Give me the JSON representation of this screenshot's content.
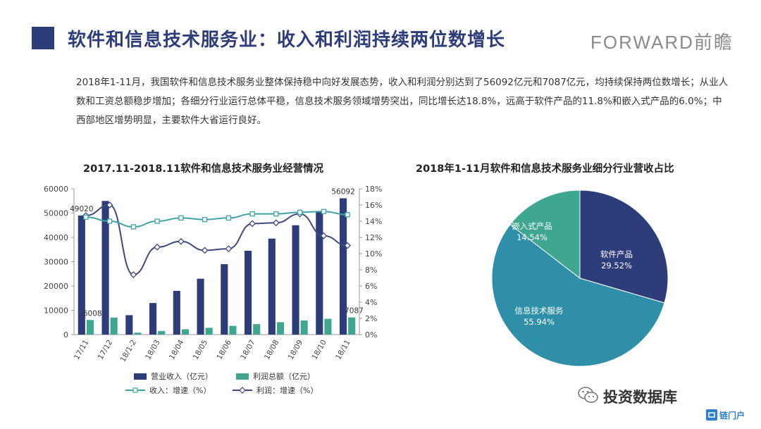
{
  "header": {
    "title": "软件和信息技术服务业：收入和利润持续两位数增长",
    "logo_text": "FORWARD前瞻"
  },
  "summary": {
    "text": "2018年1-11月，我国软件和信息技术服务业整体保持稳中向好发展态势，收入和利润分别达到了56092亿元和7087亿元，均持续保持两位数增长；从业人数和工资总额稳步增加；各细分行业运行总体平稳，信息技术服务领域增势突出，同比增长达18.8%，远高于软件产品的11.8%和嵌入式产品的6.0%；中西部地区增势明显，主要软件大省运行良好。"
  },
  "footer": {
    "brand": "投资数据库",
    "badge": "链门户"
  },
  "colors": {
    "title": "#2d3d7a",
    "bar_revenue": "#2d3d7a",
    "bar_profit": "#3fa68f",
    "line_revenue": "#3fa3a6",
    "line_profit": "#3d4a7d",
    "pie_software": "#2d3d7a",
    "pie_it": "#2f8fa8",
    "pie_embedded": "#3fa68f"
  },
  "chart_data": [
    {
      "type": "bar",
      "title": "2017.11-2018.11软件和信息技术服务业经营情况",
      "categories": [
        "17/11",
        "17/12",
        "18/1-2",
        "18/03",
        "18/04",
        "18/05",
        "18/06",
        "18/07",
        "18/08",
        "18/09",
        "18/10",
        "18/11"
      ],
      "series": [
        {
          "name": "营业收入（亿元）",
          "type": "bar",
          "axis": "left",
          "values": [
            49020,
            55000,
            8000,
            13000,
            18000,
            23000,
            29000,
            34500,
            39500,
            45000,
            50500,
            56092
          ]
        },
        {
          "name": "利润总额（亿元）",
          "type": "bar",
          "axis": "left",
          "values": [
            6008,
            7000,
            800,
            1500,
            2200,
            2800,
            3600,
            4300,
            5100,
            5800,
            6500,
            7087
          ]
        },
        {
          "name": "收入：增速（%）",
          "type": "line",
          "axis": "right",
          "values": [
            14.5,
            14.0,
            13.3,
            14.0,
            14.4,
            14.2,
            14.4,
            14.9,
            14.9,
            15.1,
            15.2,
            14.8
          ]
        },
        {
          "name": "利润：增速（%）",
          "type": "line",
          "axis": "right",
          "values": [
            14.7,
            16.0,
            7.4,
            10.8,
            11.5,
            10.4,
            10.6,
            13.7,
            13.8,
            14.9,
            12.2,
            11.0
          ]
        }
      ],
      "data_labels": [
        {
          "text": "49020"
        },
        {
          "text": "6008"
        },
        {
          "text": "56092"
        },
        {
          "text": "7087"
        }
      ],
      "ylim_left": [
        0,
        60000
      ],
      "ylim_right": [
        0,
        18
      ],
      "left_ticks": [
        "0",
        "10000",
        "20000",
        "30000",
        "40000",
        "50000",
        "60000"
      ],
      "right_ticks": [
        "0%",
        "2%",
        "4%",
        "6%",
        "8%",
        "10%",
        "12%",
        "14%",
        "16%",
        "18%"
      ],
      "legend_position": "bottom",
      "grid": false
    },
    {
      "type": "pie",
      "title": "2018年1-11月软件和信息技术服务业细分行业营收占比",
      "slices": [
        {
          "label": "软件产品",
          "value": 29.52,
          "display": "29.52%"
        },
        {
          "label": "信息技术服务",
          "value": 55.94,
          "display": "55.94%"
        },
        {
          "label": "嵌入式产品",
          "value": 14.54,
          "display": "14.54%"
        }
      ]
    }
  ]
}
